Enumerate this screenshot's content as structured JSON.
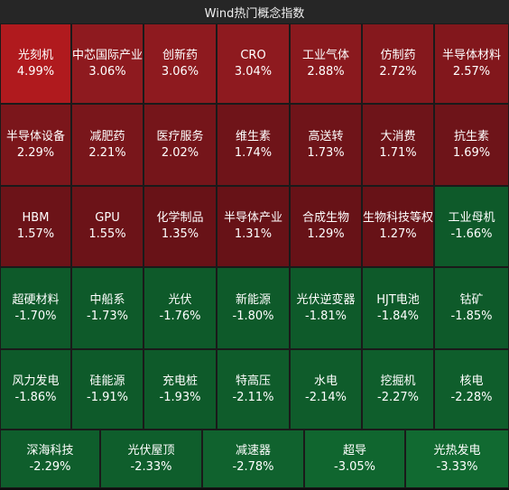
{
  "header": {
    "title": "Wind热门概念指数"
  },
  "colors": {
    "up_strong": "#b01a1e",
    "up": "#8e1a1f",
    "up_mid": "#7a1519",
    "up_light": "#6d1217",
    "down": "#0e5a2a",
    "down_dark": "#0b4a22"
  },
  "rows": [
    [
      {
        "name": "光刻机",
        "pct": "4.99%",
        "color": "#b01a1e"
      },
      {
        "name": "中芯国际产业",
        "pct": "3.06%",
        "color": "#8e1a1f"
      },
      {
        "name": "创新药",
        "pct": "3.06%",
        "color": "#8e1a1f"
      },
      {
        "name": "CRO",
        "pct": "3.04%",
        "color": "#8e1a1f"
      },
      {
        "name": "工业气体",
        "pct": "2.88%",
        "color": "#8a191e"
      },
      {
        "name": "仿制药",
        "pct": "2.72%",
        "color": "#85181d"
      },
      {
        "name": "半导体材料",
        "pct": "2.57%",
        "color": "#82171c"
      }
    ],
    [
      {
        "name": "半导体设备",
        "pct": "2.29%",
        "color": "#7b161b"
      },
      {
        "name": "减肥药",
        "pct": "2.21%",
        "color": "#79161b"
      },
      {
        "name": "医疗服务",
        "pct": "2.02%",
        "color": "#75151a"
      },
      {
        "name": "维生素",
        "pct": "1.74%",
        "color": "#6f1419"
      },
      {
        "name": "高送转",
        "pct": "1.73%",
        "color": "#6f1419"
      },
      {
        "name": "大消费",
        "pct": "1.71%",
        "color": "#6e1419"
      },
      {
        "name": "抗生素",
        "pct": "1.69%",
        "color": "#6e1419"
      }
    ],
    [
      {
        "name": "HBM",
        "pct": "1.57%",
        "color": "#6c1318"
      },
      {
        "name": "GPU",
        "pct": "1.55%",
        "color": "#6c1318"
      },
      {
        "name": "化学制品",
        "pct": "1.35%",
        "color": "#681217"
      },
      {
        "name": "半导体产业",
        "pct": "1.31%",
        "color": "#671217"
      },
      {
        "name": "合成生物",
        "pct": "1.29%",
        "color": "#671217"
      },
      {
        "name": "生物科技等权",
        "pct": "1.27%",
        "color": "#671217"
      },
      {
        "name": "工业母机",
        "pct": "-1.66%",
        "color": "#0e5a2a"
      }
    ],
    [
      {
        "name": "超硬材料",
        "pct": "-1.70%",
        "color": "#0e5a2a"
      },
      {
        "name": "中船系",
        "pct": "-1.73%",
        "color": "#0e5a2a"
      },
      {
        "name": "光伏",
        "pct": "-1.76%",
        "color": "#0e5a2a"
      },
      {
        "name": "新能源",
        "pct": "-1.80%",
        "color": "#0e5a2a"
      },
      {
        "name": "光伏逆变器",
        "pct": "-1.81%",
        "color": "#0e5a2a"
      },
      {
        "name": "HJT电池",
        "pct": "-1.84%",
        "color": "#0e5a2a"
      },
      {
        "name": "钴矿",
        "pct": "-1.85%",
        "color": "#0e5a2a"
      }
    ],
    [
      {
        "name": "风力发电",
        "pct": "-1.86%",
        "color": "#0e5a2a"
      },
      {
        "name": "硅能源",
        "pct": "-1.91%",
        "color": "#0e5a2a"
      },
      {
        "name": "充电桩",
        "pct": "-1.93%",
        "color": "#0e5a2a"
      },
      {
        "name": "特高压",
        "pct": "-2.11%",
        "color": "#0f5c2b"
      },
      {
        "name": "水电",
        "pct": "-2.14%",
        "color": "#0f5c2b"
      },
      {
        "name": "挖掘机",
        "pct": "-2.27%",
        "color": "#0f5e2c"
      },
      {
        "name": "核电",
        "pct": "-2.28%",
        "color": "#0f5e2c"
      }
    ],
    [
      {
        "name": "深海科技",
        "pct": "-2.29%",
        "color": "#0f5e2c"
      },
      {
        "name": "光伏屋顶",
        "pct": "-2.33%",
        "color": "#0f5e2c"
      },
      {
        "name": "减速器",
        "pct": "-2.78%",
        "color": "#10622e"
      },
      {
        "name": "超导",
        "pct": "-3.05%",
        "color": "#10662f"
      },
      {
        "name": "光热发电",
        "pct": "-3.33%",
        "color": "#116a31"
      }
    ]
  ]
}
